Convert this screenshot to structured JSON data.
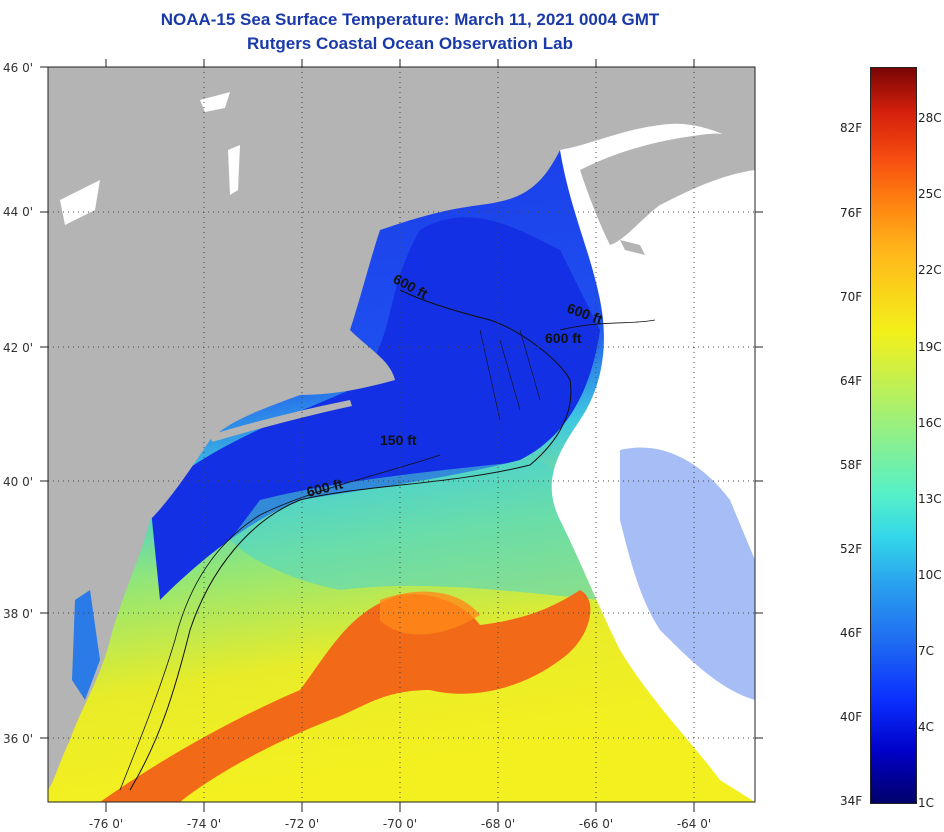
{
  "title": {
    "line1": "NOAA-15 Sea Surface Temperature:  March 11, 2021 0004 GMT",
    "line2": "Rutgers Coastal Ocean Observation Lab"
  },
  "map": {
    "lat_labels": [
      "46 0'",
      "44 0'",
      "42 0'",
      "40 0'",
      "38 0'",
      "36 0'"
    ],
    "lon_labels": [
      "-76 0'",
      "-74 0'",
      "-72 0'",
      "-70 0'",
      "-68 0'",
      "-66 0'",
      "-64 0'"
    ],
    "contour_labels": [
      "600 ft",
      "600 ft",
      "600 ft",
      "150 ft",
      "600 ft"
    ],
    "colors": {
      "land": "#b4b4b4",
      "cloud": "#ffffff",
      "cold_water": "#1530e0",
      "mid_water": "#30c8e8",
      "warm_water": "#f0f020",
      "gulf_stream": "#f26a18"
    }
  },
  "colorbar": {
    "fahrenheit_labels": [
      "82F",
      "76F",
      "70F",
      "64F",
      "58F",
      "52F",
      "46F",
      "40F",
      "34F"
    ],
    "celsius_labels": [
      "28C",
      "25C",
      "22C",
      "19C",
      "16C",
      "13C",
      "10C",
      "7C",
      "4C",
      "1C"
    ]
  }
}
